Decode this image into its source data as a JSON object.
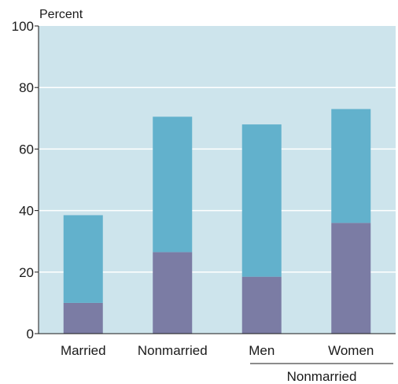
{
  "chart_data": {
    "type": "bar",
    "stacked": true,
    "ylabel": "Percent",
    "ylim": [
      0,
      100
    ],
    "yticks": [
      0,
      20,
      40,
      60,
      80,
      100
    ],
    "grid": true,
    "categories": [
      "Married",
      "Nonmarried",
      "Men",
      "Women"
    ],
    "group_label": {
      "text": "Nonmarried",
      "spans": [
        "Men",
        "Women"
      ]
    },
    "series": [
      {
        "values": [
          10,
          26.5,
          18.5,
          36
        ],
        "color": "#7b7ca4"
      },
      {
        "values": [
          28.5,
          44,
          49.5,
          37
        ],
        "color": "#62b1cc"
      }
    ],
    "totals": [
      38.5,
      70.5,
      68,
      73
    ],
    "colors": {
      "plot_background": "#cde4ec",
      "gridline": "#ffffff",
      "axis": "#1a1a1a"
    }
  }
}
